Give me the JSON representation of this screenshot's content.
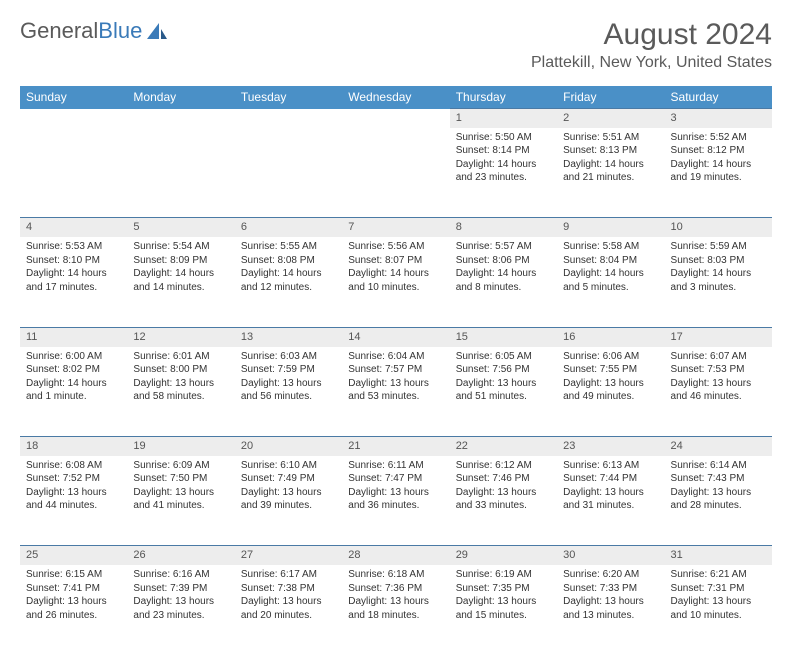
{
  "logo": {
    "text1": "General",
    "text2": "Blue"
  },
  "title": {
    "month": "August 2024",
    "location": "Plattekill, New York, United States"
  },
  "colors": {
    "header_bg": "#4a90c7",
    "header_text": "#ffffff",
    "daynum_bg": "#ededed",
    "daynum_border": "#4a7aa5",
    "body_text": "#333333"
  },
  "typography": {
    "header_fontsize": 12,
    "cell_fontsize": 10,
    "title_fontsize": 30
  },
  "daysOfWeek": [
    "Sunday",
    "Monday",
    "Tuesday",
    "Wednesday",
    "Thursday",
    "Friday",
    "Saturday"
  ],
  "weeks": [
    {
      "nums": [
        "",
        "",
        "",
        "",
        "1",
        "2",
        "3"
      ],
      "cells": [
        null,
        null,
        null,
        null,
        {
          "sunrise": "Sunrise: 5:50 AM",
          "sunset": "Sunset: 8:14 PM",
          "day1": "Daylight: 14 hours",
          "day2": "and 23 minutes."
        },
        {
          "sunrise": "Sunrise: 5:51 AM",
          "sunset": "Sunset: 8:13 PM",
          "day1": "Daylight: 14 hours",
          "day2": "and 21 minutes."
        },
        {
          "sunrise": "Sunrise: 5:52 AM",
          "sunset": "Sunset: 8:12 PM",
          "day1": "Daylight: 14 hours",
          "day2": "and 19 minutes."
        }
      ]
    },
    {
      "nums": [
        "4",
        "5",
        "6",
        "7",
        "8",
        "9",
        "10"
      ],
      "cells": [
        {
          "sunrise": "Sunrise: 5:53 AM",
          "sunset": "Sunset: 8:10 PM",
          "day1": "Daylight: 14 hours",
          "day2": "and 17 minutes."
        },
        {
          "sunrise": "Sunrise: 5:54 AM",
          "sunset": "Sunset: 8:09 PM",
          "day1": "Daylight: 14 hours",
          "day2": "and 14 minutes."
        },
        {
          "sunrise": "Sunrise: 5:55 AM",
          "sunset": "Sunset: 8:08 PM",
          "day1": "Daylight: 14 hours",
          "day2": "and 12 minutes."
        },
        {
          "sunrise": "Sunrise: 5:56 AM",
          "sunset": "Sunset: 8:07 PM",
          "day1": "Daylight: 14 hours",
          "day2": "and 10 minutes."
        },
        {
          "sunrise": "Sunrise: 5:57 AM",
          "sunset": "Sunset: 8:06 PM",
          "day1": "Daylight: 14 hours",
          "day2": "and 8 minutes."
        },
        {
          "sunrise": "Sunrise: 5:58 AM",
          "sunset": "Sunset: 8:04 PM",
          "day1": "Daylight: 14 hours",
          "day2": "and 5 minutes."
        },
        {
          "sunrise": "Sunrise: 5:59 AM",
          "sunset": "Sunset: 8:03 PM",
          "day1": "Daylight: 14 hours",
          "day2": "and 3 minutes."
        }
      ]
    },
    {
      "nums": [
        "11",
        "12",
        "13",
        "14",
        "15",
        "16",
        "17"
      ],
      "cells": [
        {
          "sunrise": "Sunrise: 6:00 AM",
          "sunset": "Sunset: 8:02 PM",
          "day1": "Daylight: 14 hours",
          "day2": "and 1 minute."
        },
        {
          "sunrise": "Sunrise: 6:01 AM",
          "sunset": "Sunset: 8:00 PM",
          "day1": "Daylight: 13 hours",
          "day2": "and 58 minutes."
        },
        {
          "sunrise": "Sunrise: 6:03 AM",
          "sunset": "Sunset: 7:59 PM",
          "day1": "Daylight: 13 hours",
          "day2": "and 56 minutes."
        },
        {
          "sunrise": "Sunrise: 6:04 AM",
          "sunset": "Sunset: 7:57 PM",
          "day1": "Daylight: 13 hours",
          "day2": "and 53 minutes."
        },
        {
          "sunrise": "Sunrise: 6:05 AM",
          "sunset": "Sunset: 7:56 PM",
          "day1": "Daylight: 13 hours",
          "day2": "and 51 minutes."
        },
        {
          "sunrise": "Sunrise: 6:06 AM",
          "sunset": "Sunset: 7:55 PM",
          "day1": "Daylight: 13 hours",
          "day2": "and 49 minutes."
        },
        {
          "sunrise": "Sunrise: 6:07 AM",
          "sunset": "Sunset: 7:53 PM",
          "day1": "Daylight: 13 hours",
          "day2": "and 46 minutes."
        }
      ]
    },
    {
      "nums": [
        "18",
        "19",
        "20",
        "21",
        "22",
        "23",
        "24"
      ],
      "cells": [
        {
          "sunrise": "Sunrise: 6:08 AM",
          "sunset": "Sunset: 7:52 PM",
          "day1": "Daylight: 13 hours",
          "day2": "and 44 minutes."
        },
        {
          "sunrise": "Sunrise: 6:09 AM",
          "sunset": "Sunset: 7:50 PM",
          "day1": "Daylight: 13 hours",
          "day2": "and 41 minutes."
        },
        {
          "sunrise": "Sunrise: 6:10 AM",
          "sunset": "Sunset: 7:49 PM",
          "day1": "Daylight: 13 hours",
          "day2": "and 39 minutes."
        },
        {
          "sunrise": "Sunrise: 6:11 AM",
          "sunset": "Sunset: 7:47 PM",
          "day1": "Daylight: 13 hours",
          "day2": "and 36 minutes."
        },
        {
          "sunrise": "Sunrise: 6:12 AM",
          "sunset": "Sunset: 7:46 PM",
          "day1": "Daylight: 13 hours",
          "day2": "and 33 minutes."
        },
        {
          "sunrise": "Sunrise: 6:13 AM",
          "sunset": "Sunset: 7:44 PM",
          "day1": "Daylight: 13 hours",
          "day2": "and 31 minutes."
        },
        {
          "sunrise": "Sunrise: 6:14 AM",
          "sunset": "Sunset: 7:43 PM",
          "day1": "Daylight: 13 hours",
          "day2": "and 28 minutes."
        }
      ]
    },
    {
      "nums": [
        "25",
        "26",
        "27",
        "28",
        "29",
        "30",
        "31"
      ],
      "cells": [
        {
          "sunrise": "Sunrise: 6:15 AM",
          "sunset": "Sunset: 7:41 PM",
          "day1": "Daylight: 13 hours",
          "day2": "and 26 minutes."
        },
        {
          "sunrise": "Sunrise: 6:16 AM",
          "sunset": "Sunset: 7:39 PM",
          "day1": "Daylight: 13 hours",
          "day2": "and 23 minutes."
        },
        {
          "sunrise": "Sunrise: 6:17 AM",
          "sunset": "Sunset: 7:38 PM",
          "day1": "Daylight: 13 hours",
          "day2": "and 20 minutes."
        },
        {
          "sunrise": "Sunrise: 6:18 AM",
          "sunset": "Sunset: 7:36 PM",
          "day1": "Daylight: 13 hours",
          "day2": "and 18 minutes."
        },
        {
          "sunrise": "Sunrise: 6:19 AM",
          "sunset": "Sunset: 7:35 PM",
          "day1": "Daylight: 13 hours",
          "day2": "and 15 minutes."
        },
        {
          "sunrise": "Sunrise: 6:20 AM",
          "sunset": "Sunset: 7:33 PM",
          "day1": "Daylight: 13 hours",
          "day2": "and 13 minutes."
        },
        {
          "sunrise": "Sunrise: 6:21 AM",
          "sunset": "Sunset: 7:31 PM",
          "day1": "Daylight: 13 hours",
          "day2": "and 10 minutes."
        }
      ]
    }
  ]
}
